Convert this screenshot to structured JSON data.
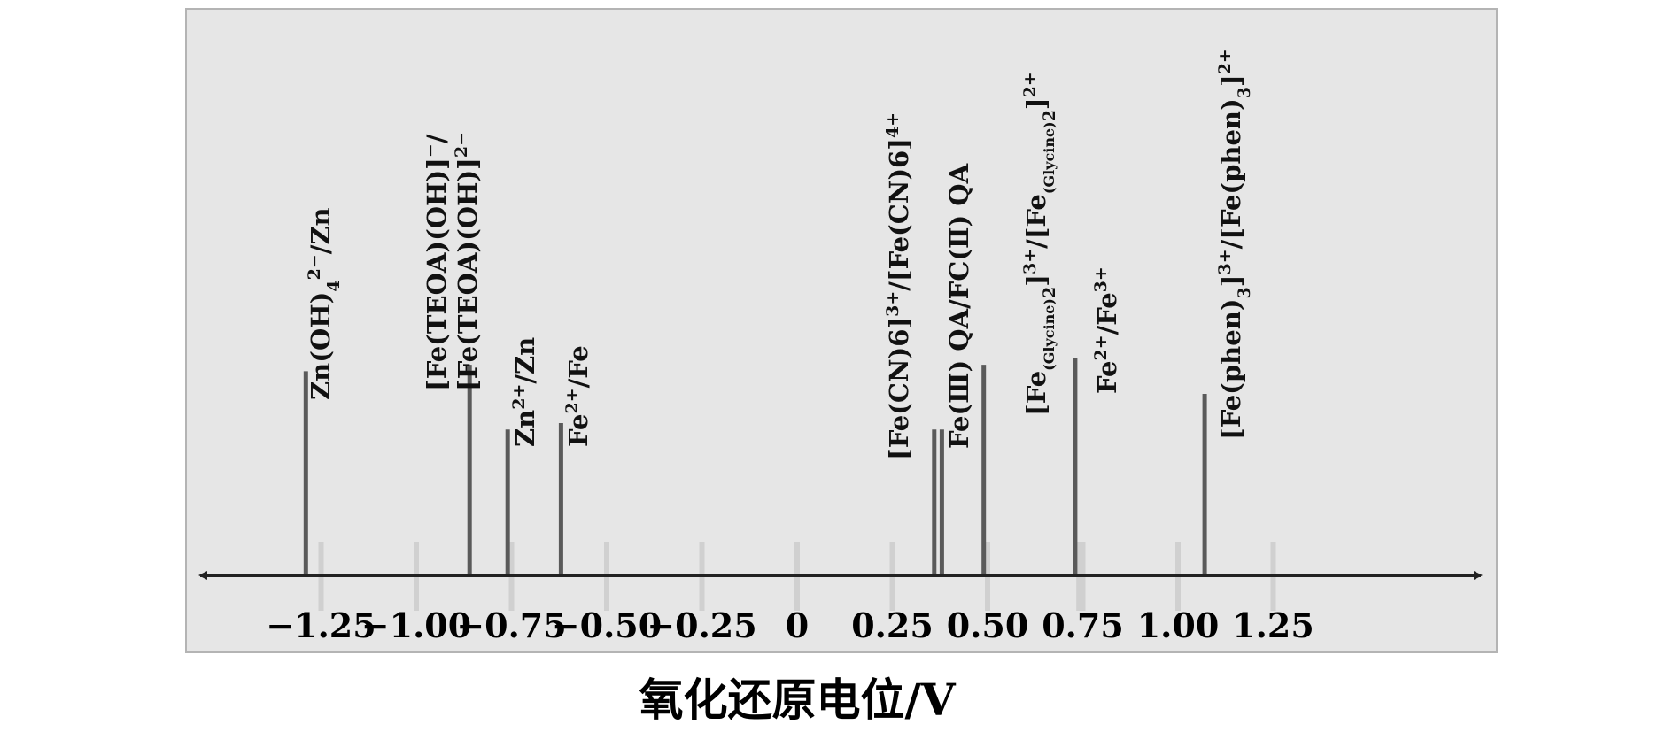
{
  "chart_data": {
    "type": "line",
    "title": "",
    "xlabel": "氧化还原电位/V",
    "ylabel": "",
    "xlim": [
      -1.5,
      1.75
    ],
    "ticks": [
      {
        "value": -1.25,
        "label": "−1.25"
      },
      {
        "value": -1.0,
        "label": "−1.00"
      },
      {
        "value": -0.75,
        "label": "−0.75"
      },
      {
        "value": -0.5,
        "label": "−0.50"
      },
      {
        "value": -0.25,
        "label": "−0.25"
      },
      {
        "value": 0,
        "label": "0"
      },
      {
        "value": 0.25,
        "label": "0.25"
      },
      {
        "value": 0.5,
        "label": "0.50"
      },
      {
        "value": 0.75,
        "label": "0.75"
      },
      {
        "value": 1.0,
        "label": "1.00"
      },
      {
        "value": 1.25,
        "label": "1.25"
      }
    ],
    "couples": [
      {
        "name": "Zn(OH)4 2−/Zn",
        "potential": -1.29,
        "relative_height": 0.63
      },
      {
        "name": "[Fe(TEOA)(OH)]−/[Fe(TEOA)(OH)]2−",
        "potential": -0.86,
        "relative_height": 0.65
      },
      {
        "name": "Zn2+/Zn",
        "potential": -0.76,
        "relative_height": 0.45
      },
      {
        "name": "Fe2+/Fe",
        "potential": -0.62,
        "relative_height": 0.47
      },
      {
        "name": "[Fe(CN)6]3+/[Fe(CN)6]4+",
        "potential": 0.36,
        "relative_height": 0.45
      },
      {
        "name": "Fe(Ⅲ) QA/FC(Ⅱ) QA",
        "potential": 0.38,
        "relative_height": 0.45
      },
      {
        "name": "[Fe(Glycine)2]3+/[Fe(Glycine)2]2+",
        "potential": 0.49,
        "relative_height": 0.65
      },
      {
        "name": "Fe2+/Fe3+",
        "potential": 0.73,
        "relative_height": 0.67
      },
      {
        "name": "[Fe(phen)3]3+/[Fe(phen)3]2+",
        "potential": 1.07,
        "relative_height": 0.56
      }
    ],
    "colors": {
      "panel": "#e6e6e6",
      "panel_border": "#b4b4b4",
      "axis": "#222222",
      "stick": "#5a5a5a",
      "light_tick": "#d0d0d0"
    }
  }
}
